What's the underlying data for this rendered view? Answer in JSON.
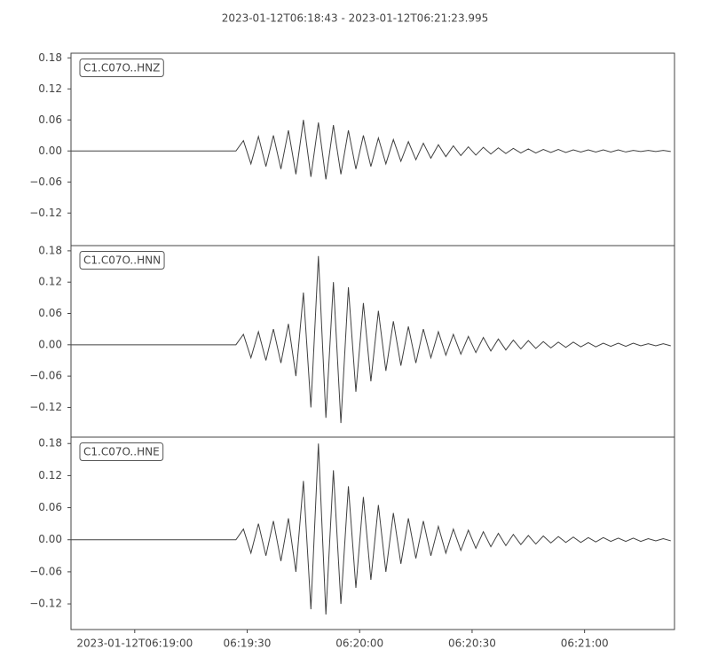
{
  "chart_data": [
    {
      "type": "line",
      "title": "2023-01-12T06:18:43  -  2023-01-12T06:21:23.995",
      "label": "C1.C07O..HNZ",
      "color": "#404040",
      "xlim": [
        "2023-01-12T06:18:43",
        "2023-01-12T06:21:23.995"
      ],
      "ylim": [
        -0.183,
        0.189
      ],
      "yticks": [
        0.18,
        0.12,
        0.06,
        {
          "value": 0,
          "label": "0.00"
        },
        {
          "value": -0.06,
          "label": "−0.06"
        },
        {
          "value": -0.12,
          "label": "−0.12"
        }
      ],
      "x": [
        "2023-01-12T06:18:43",
        "2023-01-12T06:18:45",
        "2023-01-12T06:18:47",
        "2023-01-12T06:18:49",
        "2023-01-12T06:18:51",
        "2023-01-12T06:18:53",
        "2023-01-12T06:18:55",
        "2023-01-12T06:18:57",
        "2023-01-12T06:18:59",
        "2023-01-12T06:19:01",
        "2023-01-12T06:19:03",
        "2023-01-12T06:19:05",
        "2023-01-12T06:19:07",
        "2023-01-12T06:19:09",
        "2023-01-12T06:19:11",
        "2023-01-12T06:19:13",
        "2023-01-12T06:19:15",
        "2023-01-12T06:19:17",
        "2023-01-12T06:19:19",
        "2023-01-12T06:19:21",
        "2023-01-12T06:19:23",
        "2023-01-12T06:19:25",
        "2023-01-12T06:19:27",
        "2023-01-12T06:19:29",
        "2023-01-12T06:19:31",
        "2023-01-12T06:19:33",
        "2023-01-12T06:19:35",
        "2023-01-12T06:19:37",
        "2023-01-12T06:19:39",
        "2023-01-12T06:19:41",
        "2023-01-12T06:19:43",
        "2023-01-12T06:19:45",
        "2023-01-12T06:19:47",
        "2023-01-12T06:19:49",
        "2023-01-12T06:19:51",
        "2023-01-12T06:19:53",
        "2023-01-12T06:19:55",
        "2023-01-12T06:19:57",
        "2023-01-12T06:19:59",
        "2023-01-12T06:20:01",
        "2023-01-12T06:20:03",
        "2023-01-12T06:20:05",
        "2023-01-12T06:20:07",
        "2023-01-12T06:20:09",
        "2023-01-12T06:20:11",
        "2023-01-12T06:20:13",
        "2023-01-12T06:20:15",
        "2023-01-12T06:20:17",
        "2023-01-12T06:20:19",
        "2023-01-12T06:20:21",
        "2023-01-12T06:20:23",
        "2023-01-12T06:20:25",
        "2023-01-12T06:20:27",
        "2023-01-12T06:20:29",
        "2023-01-12T06:20:31",
        "2023-01-12T06:20:33",
        "2023-01-12T06:20:35",
        "2023-01-12T06:20:37",
        "2023-01-12T06:20:39",
        "2023-01-12T06:20:41",
        "2023-01-12T06:20:43",
        "2023-01-12T06:20:45",
        "2023-01-12T06:20:47",
        "2023-01-12T06:20:49",
        "2023-01-12T06:20:51",
        "2023-01-12T06:20:53",
        "2023-01-12T06:20:55",
        "2023-01-12T06:20:57",
        "2023-01-12T06:20:59",
        "2023-01-12T06:21:01",
        "2023-01-12T06:21:03",
        "2023-01-12T06:21:05",
        "2023-01-12T06:21:07",
        "2023-01-12T06:21:09",
        "2023-01-12T06:21:11",
        "2023-01-12T06:21:13",
        "2023-01-12T06:21:15",
        "2023-01-12T06:21:17",
        "2023-01-12T06:21:19",
        "2023-01-12T06:21:21",
        "2023-01-12T06:21:23"
      ],
      "values": [
        0,
        0,
        0,
        0,
        0,
        0,
        0,
        0,
        0,
        0,
        0,
        0,
        0,
        0,
        0,
        0,
        0,
        0,
        0,
        0,
        0,
        0,
        0,
        0.02,
        -0.025,
        0.028,
        -0.03,
        0.03,
        -0.035,
        0.04,
        -0.045,
        0.06,
        -0.05,
        0.055,
        -0.055,
        0.05,
        -0.045,
        0.04,
        -0.035,
        0.03,
        -0.03,
        0.025,
        -0.025,
        0.022,
        -0.02,
        0.018,
        -0.017,
        0.015,
        -0.014,
        0.012,
        -0.011,
        0.01,
        -0.009,
        0.008,
        -0.008,
        0.007,
        -0.006,
        0.006,
        -0.005,
        0.005,
        -0.004,
        0.004,
        -0.004,
        0.003,
        -0.003,
        0.003,
        -0.003,
        0.002,
        -0.002,
        0.002,
        -0.002,
        0.002,
        -0.002,
        0.002,
        -0.002,
        0.001,
        -0.001,
        0.001,
        -0.001,
        0.001,
        -0.001
      ]
    },
    {
      "type": "line",
      "label": "C1.C07O..HNN",
      "color": "#404040",
      "xlim": [
        "2023-01-12T06:18:43",
        "2023-01-12T06:21:23.995"
      ],
      "ylim": [
        -0.177,
        0.19
      ],
      "yticks": [
        0.18,
        0.12,
        0.06,
        {
          "value": 0,
          "label": "0.00"
        },
        {
          "value": -0.06,
          "label": "−0.06"
        },
        {
          "value": -0.12,
          "label": "−0.12"
        }
      ],
      "x": [
        "2023-01-12T06:18:43",
        "2023-01-12T06:18:45",
        "2023-01-12T06:18:47",
        "2023-01-12T06:18:49",
        "2023-01-12T06:18:51",
        "2023-01-12T06:18:53",
        "2023-01-12T06:18:55",
        "2023-01-12T06:18:57",
        "2023-01-12T06:18:59",
        "2023-01-12T06:19:01",
        "2023-01-12T06:19:03",
        "2023-01-12T06:19:05",
        "2023-01-12T06:19:07",
        "2023-01-12T06:19:09",
        "2023-01-12T06:19:11",
        "2023-01-12T06:19:13",
        "2023-01-12T06:19:15",
        "2023-01-12T06:19:17",
        "2023-01-12T06:19:19",
        "2023-01-12T06:19:21",
        "2023-01-12T06:19:23",
        "2023-01-12T06:19:25",
        "2023-01-12T06:19:27",
        "2023-01-12T06:19:29",
        "2023-01-12T06:19:31",
        "2023-01-12T06:19:33",
        "2023-01-12T06:19:35",
        "2023-01-12T06:19:37",
        "2023-01-12T06:19:39",
        "2023-01-12T06:19:41",
        "2023-01-12T06:19:43",
        "2023-01-12T06:19:45",
        "2023-01-12T06:19:47",
        "2023-01-12T06:19:49",
        "2023-01-12T06:19:51",
        "2023-01-12T06:19:53",
        "2023-01-12T06:19:55",
        "2023-01-12T06:19:57",
        "2023-01-12T06:19:59",
        "2023-01-12T06:20:01",
        "2023-01-12T06:20:03",
        "2023-01-12T06:20:05",
        "2023-01-12T06:20:07",
        "2023-01-12T06:20:09",
        "2023-01-12T06:20:11",
        "2023-01-12T06:20:13",
        "2023-01-12T06:20:15",
        "2023-01-12T06:20:17",
        "2023-01-12T06:20:19",
        "2023-01-12T06:20:21",
        "2023-01-12T06:20:23",
        "2023-01-12T06:20:25",
        "2023-01-12T06:20:27",
        "2023-01-12T06:20:29",
        "2023-01-12T06:20:31",
        "2023-01-12T06:20:33",
        "2023-01-12T06:20:35",
        "2023-01-12T06:20:37",
        "2023-01-12T06:20:39",
        "2023-01-12T06:20:41",
        "2023-01-12T06:20:43",
        "2023-01-12T06:20:45",
        "2023-01-12T06:20:47",
        "2023-01-12T06:20:49",
        "2023-01-12T06:20:51",
        "2023-01-12T06:20:53",
        "2023-01-12T06:20:55",
        "2023-01-12T06:20:57",
        "2023-01-12T06:20:59",
        "2023-01-12T06:21:01",
        "2023-01-12T06:21:03",
        "2023-01-12T06:21:05",
        "2023-01-12T06:21:07",
        "2023-01-12T06:21:09",
        "2023-01-12T06:21:11",
        "2023-01-12T06:21:13",
        "2023-01-12T06:21:15",
        "2023-01-12T06:21:17",
        "2023-01-12T06:21:19",
        "2023-01-12T06:21:21",
        "2023-01-12T06:21:23"
      ],
      "values": [
        0,
        0,
        0,
        0,
        0,
        0,
        0,
        0,
        0,
        0,
        0,
        0,
        0,
        0,
        0,
        0,
        0,
        0,
        0,
        0,
        0,
        0,
        0,
        0.02,
        -0.025,
        0.025,
        -0.03,
        0.03,
        -0.035,
        0.04,
        -0.06,
        0.1,
        -0.12,
        0.17,
        -0.14,
        0.12,
        -0.15,
        0.11,
        -0.09,
        0.08,
        -0.07,
        0.065,
        -0.05,
        0.045,
        -0.04,
        0.035,
        -0.035,
        0.03,
        -0.025,
        0.025,
        -0.02,
        0.02,
        -0.018,
        0.016,
        -0.015,
        0.014,
        -0.012,
        0.011,
        -0.01,
        0.009,
        -0.008,
        0.008,
        -0.007,
        0.006,
        -0.006,
        0.005,
        -0.005,
        0.005,
        -0.004,
        0.004,
        -0.004,
        0.003,
        -0.003,
        0.003,
        -0.003,
        0.003,
        -0.002,
        0.002,
        -0.002,
        0.002,
        -0.002
      ]
    },
    {
      "type": "line",
      "label": "C1.C07O..HNE",
      "color": "#404040",
      "xlim": [
        "2023-01-12T06:18:43",
        "2023-01-12T06:21:23.995"
      ],
      "ylim": [
        -0.168,
        0.192
      ],
      "yticks": [
        0.18,
        0.12,
        0.06,
        {
          "value": 0,
          "label": "0.00"
        },
        {
          "value": -0.06,
          "label": "−0.06"
        },
        {
          "value": -0.12,
          "label": "−0.12"
        }
      ],
      "xticks": [
        "2023-01-12T06:19:00",
        {
          "value": "2023-01-12T06:19:30",
          "label": "06:19:30"
        },
        {
          "value": "2023-01-12T06:20:00",
          "label": "06:20:00"
        },
        {
          "value": "2023-01-12T06:20:30",
          "label": "06:20:30"
        },
        {
          "value": "2023-01-12T06:21:00",
          "label": "06:21:00"
        }
      ],
      "x": [
        "2023-01-12T06:18:43",
        "2023-01-12T06:18:45",
        "2023-01-12T06:18:47",
        "2023-01-12T06:18:49",
        "2023-01-12T06:18:51",
        "2023-01-12T06:18:53",
        "2023-01-12T06:18:55",
        "2023-01-12T06:18:57",
        "2023-01-12T06:18:59",
        "2023-01-12T06:19:01",
        "2023-01-12T06:19:03",
        "2023-01-12T06:19:05",
        "2023-01-12T06:19:07",
        "2023-01-12T06:19:09",
        "2023-01-12T06:19:11",
        "2023-01-12T06:19:13",
        "2023-01-12T06:19:15",
        "2023-01-12T06:19:17",
        "2023-01-12T06:19:19",
        "2023-01-12T06:19:21",
        "2023-01-12T06:19:23",
        "2023-01-12T06:19:25",
        "2023-01-12T06:19:27",
        "2023-01-12T06:19:29",
        "2023-01-12T06:19:31",
        "2023-01-12T06:19:33",
        "2023-01-12T06:19:35",
        "2023-01-12T06:19:37",
        "2023-01-12T06:19:39",
        "2023-01-12T06:19:41",
        "2023-01-12T06:19:43",
        "2023-01-12T06:19:45",
        "2023-01-12T06:19:47",
        "2023-01-12T06:19:49",
        "2023-01-12T06:19:51",
        "2023-01-12T06:19:53",
        "2023-01-12T06:19:55",
        "2023-01-12T06:19:57",
        "2023-01-12T06:19:59",
        "2023-01-12T06:20:01",
        "2023-01-12T06:20:03",
        "2023-01-12T06:20:05",
        "2023-01-12T06:20:07",
        "2023-01-12T06:20:09",
        "2023-01-12T06:20:11",
        "2023-01-12T06:20:13",
        "2023-01-12T06:20:15",
        "2023-01-12T06:20:17",
        "2023-01-12T06:20:19",
        "2023-01-12T06:20:21",
        "2023-01-12T06:20:23",
        "2023-01-12T06:20:25",
        "2023-01-12T06:20:27",
        "2023-01-12T06:20:29",
        "2023-01-12T06:20:31",
        "2023-01-12T06:20:33",
        "2023-01-12T06:20:35",
        "2023-01-12T06:20:37",
        "2023-01-12T06:20:39",
        "2023-01-12T06:20:41",
        "2023-01-12T06:20:43",
        "2023-01-12T06:20:45",
        "2023-01-12T06:20:47",
        "2023-01-12T06:20:49",
        "2023-01-12T06:20:51",
        "2023-01-12T06:20:53",
        "2023-01-12T06:20:55",
        "2023-01-12T06:20:57",
        "2023-01-12T06:20:59",
        "2023-01-12T06:21:01",
        "2023-01-12T06:21:03",
        "2023-01-12T06:21:05",
        "2023-01-12T06:21:07",
        "2023-01-12T06:21:09",
        "2023-01-12T06:21:11",
        "2023-01-12T06:21:13",
        "2023-01-12T06:21:15",
        "2023-01-12T06:21:17",
        "2023-01-12T06:21:19",
        "2023-01-12T06:21:21",
        "2023-01-12T06:21:23"
      ],
      "values": [
        0,
        0,
        0,
        0,
        0,
        0,
        0,
        0,
        0,
        0,
        0,
        0,
        0,
        0,
        0,
        0,
        0,
        0,
        0,
        0,
        0,
        0,
        0,
        0.02,
        -0.025,
        0.03,
        -0.03,
        0.035,
        -0.04,
        0.04,
        -0.06,
        0.11,
        -0.13,
        0.18,
        -0.14,
        0.13,
        -0.12,
        0.1,
        -0.09,
        0.08,
        -0.075,
        0.065,
        -0.06,
        0.05,
        -0.045,
        0.04,
        -0.035,
        0.035,
        -0.03,
        0.025,
        -0.025,
        0.02,
        -0.02,
        0.018,
        -0.016,
        0.015,
        -0.013,
        0.012,
        -0.011,
        0.01,
        -0.009,
        0.008,
        -0.008,
        0.007,
        -0.006,
        0.006,
        -0.005,
        0.005,
        -0.005,
        0.004,
        -0.004,
        0.004,
        -0.003,
        0.003,
        -0.003,
        0.003,
        -0.003,
        0.002,
        -0.002,
        0.002,
        -0.002
      ]
    }
  ]
}
